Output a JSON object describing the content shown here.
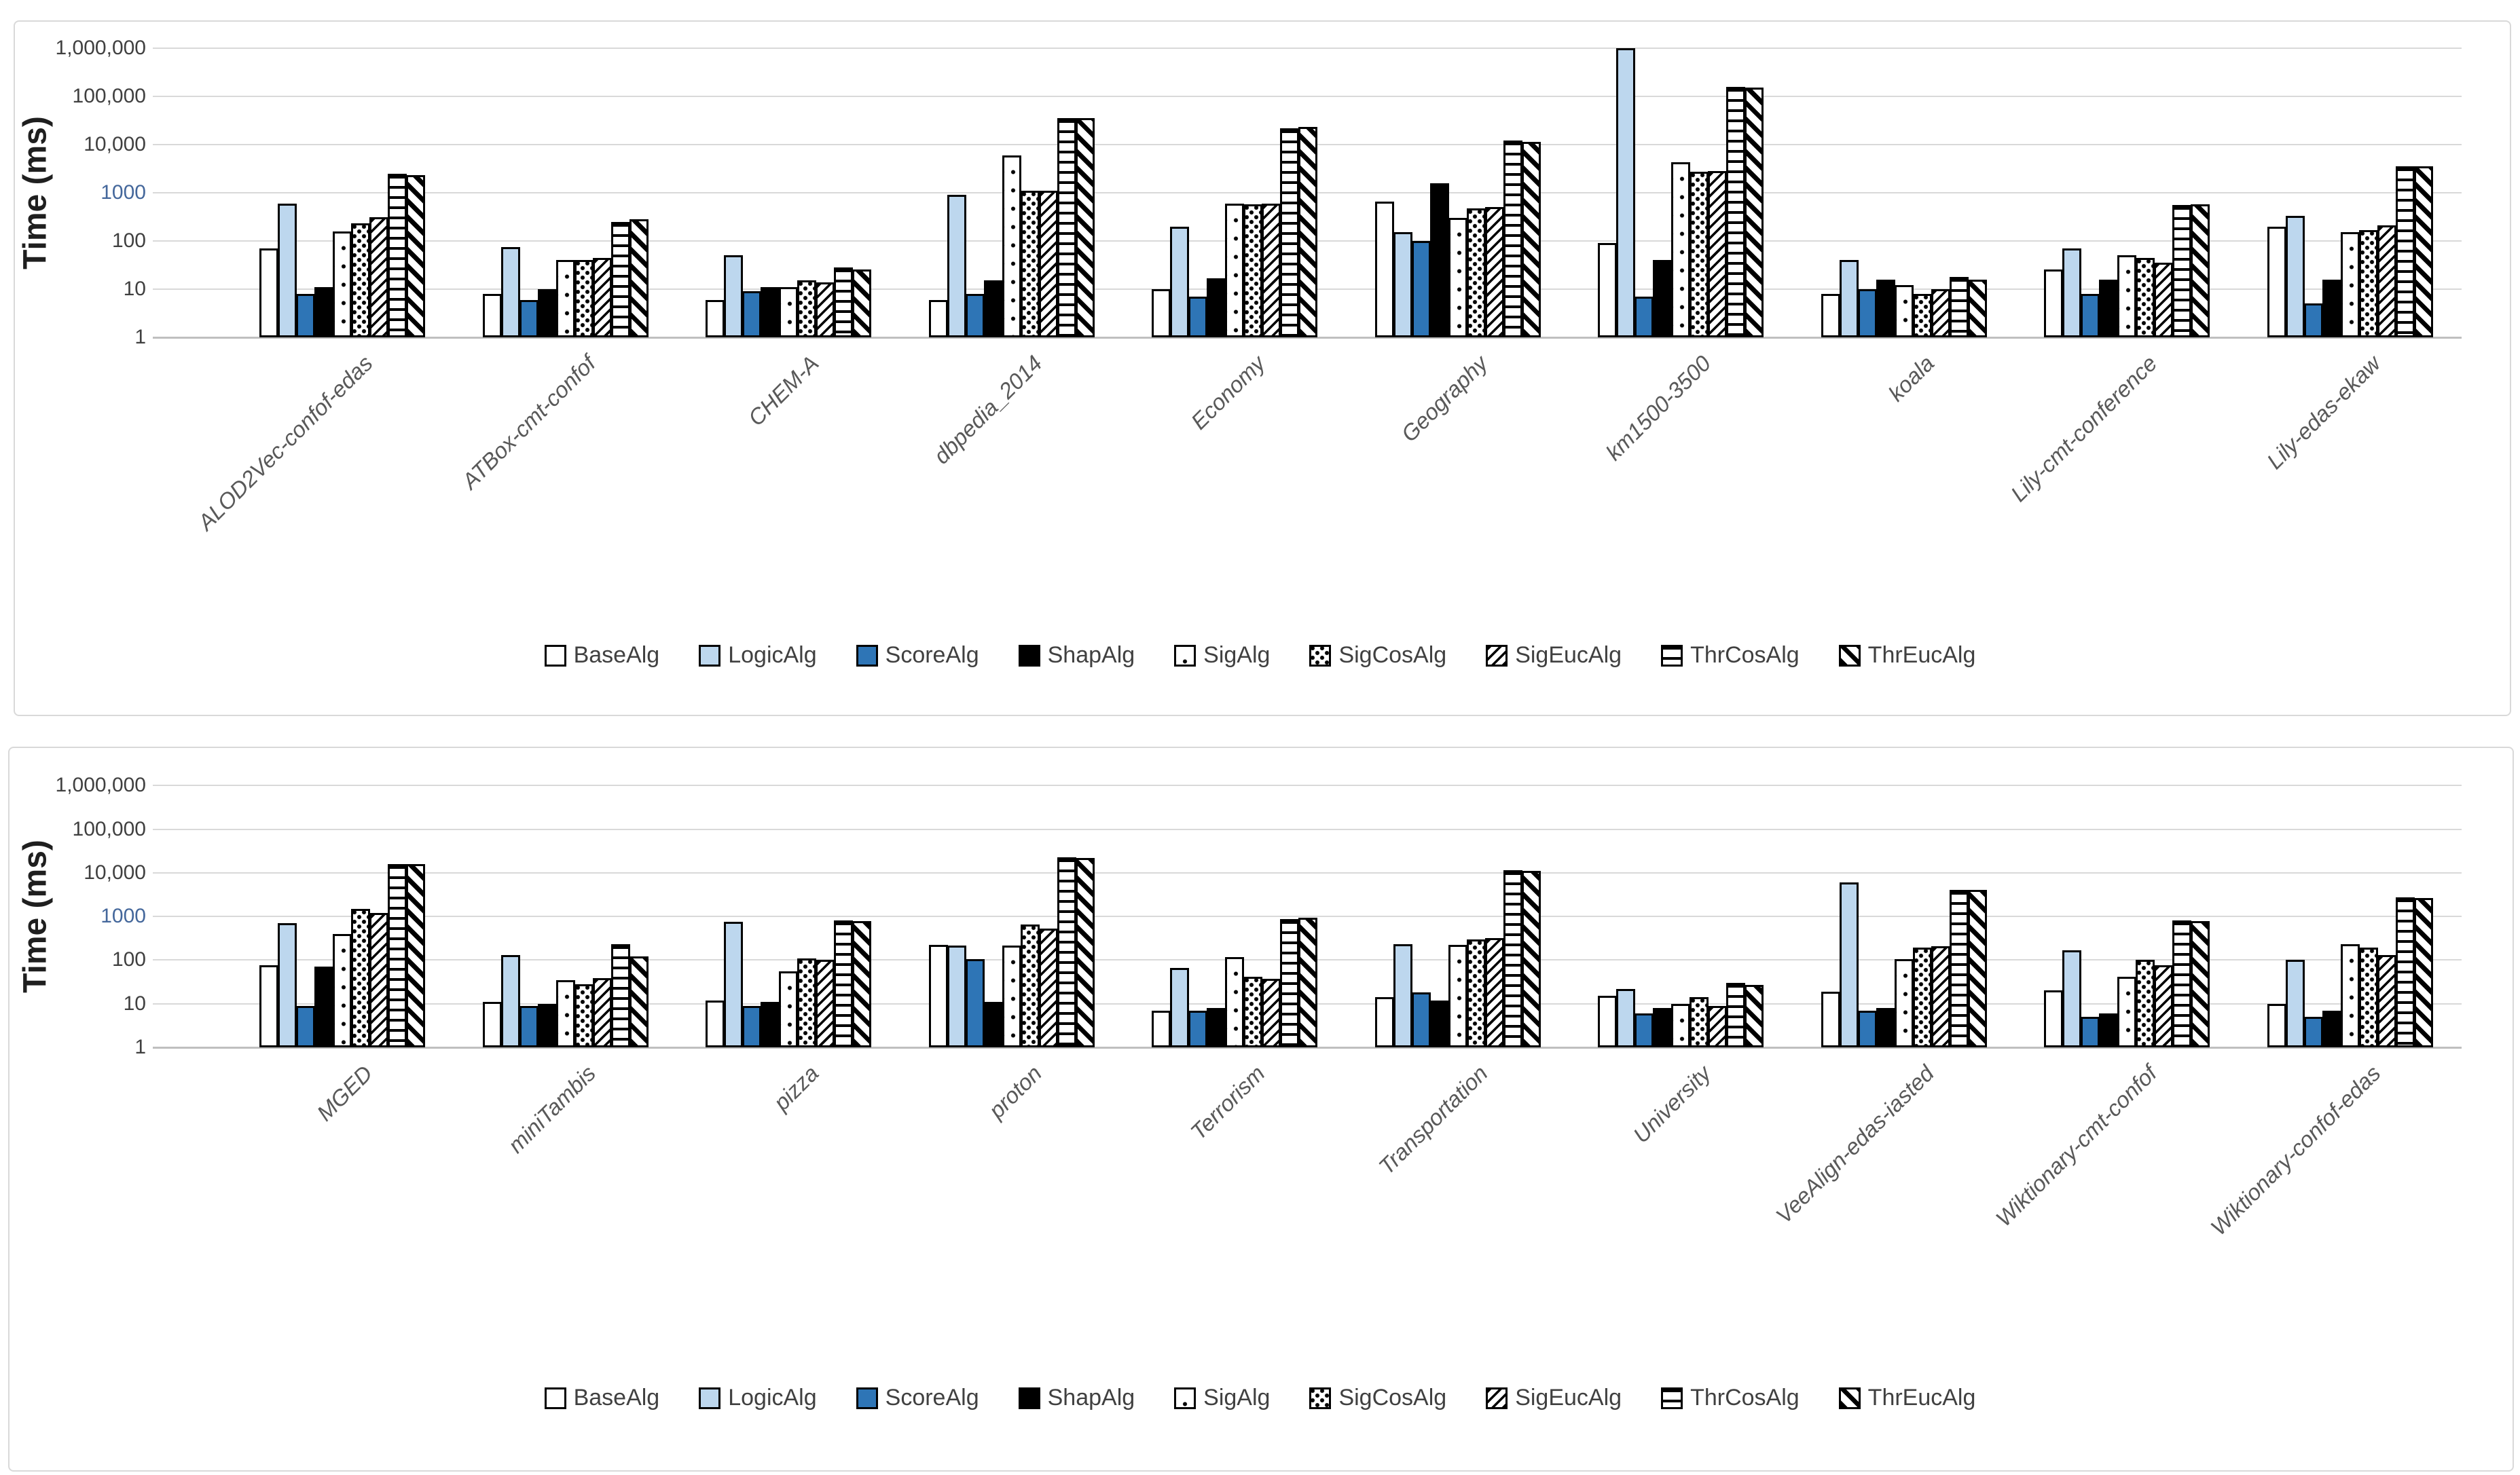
{
  "figure": {
    "background": "#FFFFFF"
  },
  "colors": {
    "light_blue": "#BDD7EE",
    "medium_blue": "#2E75B6",
    "black": "#000000",
    "white": "#FFFFFF",
    "gridline": "#D9D9D9",
    "axis_line": "#BFBFBF",
    "tick_text": "#404040",
    "tick_text_highlight": "#44679B",
    "category_text": "#595959",
    "legend_text": "#404040",
    "panel_border": "#D9D9D9",
    "axis_title_text": "#1F1F1F"
  },
  "chart_data": [
    {
      "type": "bar",
      "title": "",
      "ylabel": "Time (ms)",
      "yscale": "log",
      "ylim": [
        1,
        1000000
      ],
      "grid": true,
      "legend_position": "bottom",
      "y_ticks": [
        {
          "label": "1,000,000",
          "value": 1000000,
          "color": "#404040"
        },
        {
          "label": "100,000",
          "value": 100000,
          "color": "#404040"
        },
        {
          "label": "10,000",
          "value": 10000,
          "color": "#404040"
        },
        {
          "label": "1000",
          "value": 1000,
          "color": "#44679B"
        },
        {
          "label": "100",
          "value": 100,
          "color": "#404040"
        },
        {
          "label": "10",
          "value": 10,
          "color": "#404040"
        },
        {
          "label": "1",
          "value": 1,
          "color": "#404040"
        }
      ],
      "categories": [
        "ALOD2Vec-confof-edas",
        "ATBox-cmt-confof",
        "CHEM-A",
        "dbpedia_2014",
        "Economy",
        "Geography",
        "km1500-3500",
        "koala",
        "Lily-cmt-conference",
        "Lily-edas-ekaw"
      ],
      "series": [
        {
          "name": "BaseAlg",
          "pattern": "plain",
          "values": [
            71,
            8,
            6,
            6,
            10,
            650,
            90,
            8,
            26,
            200
          ]
        },
        {
          "name": "LogicAlg",
          "pattern": "solid-light-blue",
          "values": [
            600,
            75,
            50,
            900,
            200,
            150,
            1000000,
            40,
            70,
            330
          ]
        },
        {
          "name": "ScoreAlg",
          "pattern": "solid-blue",
          "values": [
            8,
            6,
            9,
            8,
            7,
            100,
            7,
            10,
            8,
            5
          ]
        },
        {
          "name": "ShapAlg",
          "pattern": "solid-black",
          "values": [
            11,
            10,
            11,
            15,
            17,
            1600,
            40,
            16,
            16,
            16
          ]
        },
        {
          "name": "SigAlg",
          "pattern": "dots-sparse",
          "values": [
            160,
            40,
            11,
            6000,
            600,
            300,
            4300,
            12,
            50,
            150
          ]
        },
        {
          "name": "SigCosAlg",
          "pattern": "dots-dense",
          "values": [
            230,
            40,
            15,
            1100,
            580,
            480,
            2700,
            8,
            44,
            170
          ]
        },
        {
          "name": "SigEucAlg",
          "pattern": "diag-thin",
          "values": [
            310,
            45,
            14,
            1100,
            600,
            500,
            2800,
            10,
            36,
            210
          ]
        },
        {
          "name": "ThrCosAlg",
          "pattern": "h-stripes",
          "values": [
            2500,
            250,
            28,
            36000,
            22000,
            12000,
            160000,
            18,
            560,
            3500
          ]
        },
        {
          "name": "ThrEucAlg",
          "pattern": "diag-wide",
          "values": [
            2300,
            280,
            26,
            35000,
            23000,
            11500,
            150000,
            16,
            570,
            3500
          ]
        }
      ]
    },
    {
      "type": "bar",
      "title": "",
      "ylabel": "Time (ms)",
      "yscale": "log",
      "ylim": [
        1,
        1000000
      ],
      "grid": true,
      "legend_position": "bottom",
      "y_ticks": [
        {
          "label": "1,000,000",
          "value": 1000000,
          "color": "#404040"
        },
        {
          "label": "100,000",
          "value": 100000,
          "color": "#404040"
        },
        {
          "label": "10,000",
          "value": 10000,
          "color": "#404040"
        },
        {
          "label": "1000",
          "value": 1000,
          "color": "#44679B"
        },
        {
          "label": "100",
          "value": 100,
          "color": "#404040"
        },
        {
          "label": "10",
          "value": 10,
          "color": "#404040"
        },
        {
          "label": "1",
          "value": 1,
          "color": "#404040"
        }
      ],
      "categories": [
        "MGED",
        "miniTambis",
        "pizza",
        "proton",
        "Terrorism",
        "Transportation",
        "University",
        "VeeAlign-edas-iasted",
        "Wiktionary-cmt-confof",
        "Wiktionary-confof-edas"
      ],
      "series": [
        {
          "name": "BaseAlg",
          "pattern": "plain",
          "values": [
            75,
            11,
            12,
            225,
            7,
            14,
            15,
            19,
            20,
            10
          ]
        },
        {
          "name": "LogicAlg",
          "pattern": "solid-light-blue",
          "values": [
            700,
            130,
            750,
            215,
            65,
            235,
            22,
            6000,
            165,
            100
          ]
        },
        {
          "name": "ScoreAlg",
          "pattern": "solid-blue",
          "values": [
            9,
            9,
            9,
            105,
            7,
            18,
            6,
            7,
            5,
            5
          ]
        },
        {
          "name": "ShapAlg",
          "pattern": "solid-black",
          "values": [
            70,
            10,
            11,
            11,
            8,
            12,
            8,
            8,
            6,
            7
          ]
        },
        {
          "name": "SigAlg",
          "pattern": "dots-sparse",
          "values": [
            400,
            35,
            55,
            215,
            115,
            225,
            10,
            105,
            42,
            230
          ]
        },
        {
          "name": "SigCosAlg",
          "pattern": "dots-dense",
          "values": [
            1500,
            28,
            110,
            650,
            42,
            300,
            14,
            195,
            100,
            190
          ]
        },
        {
          "name": "SigEucAlg",
          "pattern": "diag-thin",
          "values": [
            1200,
            38,
            100,
            525,
            37,
            315,
            9,
            205,
            76,
            130
          ]
        },
        {
          "name": "ThrCosAlg",
          "pattern": "h-stripes",
          "values": [
            16000,
            230,
            800,
            23000,
            870,
            11500,
            30,
            4100,
            810,
            2700
          ]
        },
        {
          "name": "ThrEucAlg",
          "pattern": "diag-wide",
          "values": [
            16000,
            120,
            780,
            22000,
            950,
            11000,
            27,
            4100,
            790,
            2600
          ]
        }
      ]
    }
  ]
}
